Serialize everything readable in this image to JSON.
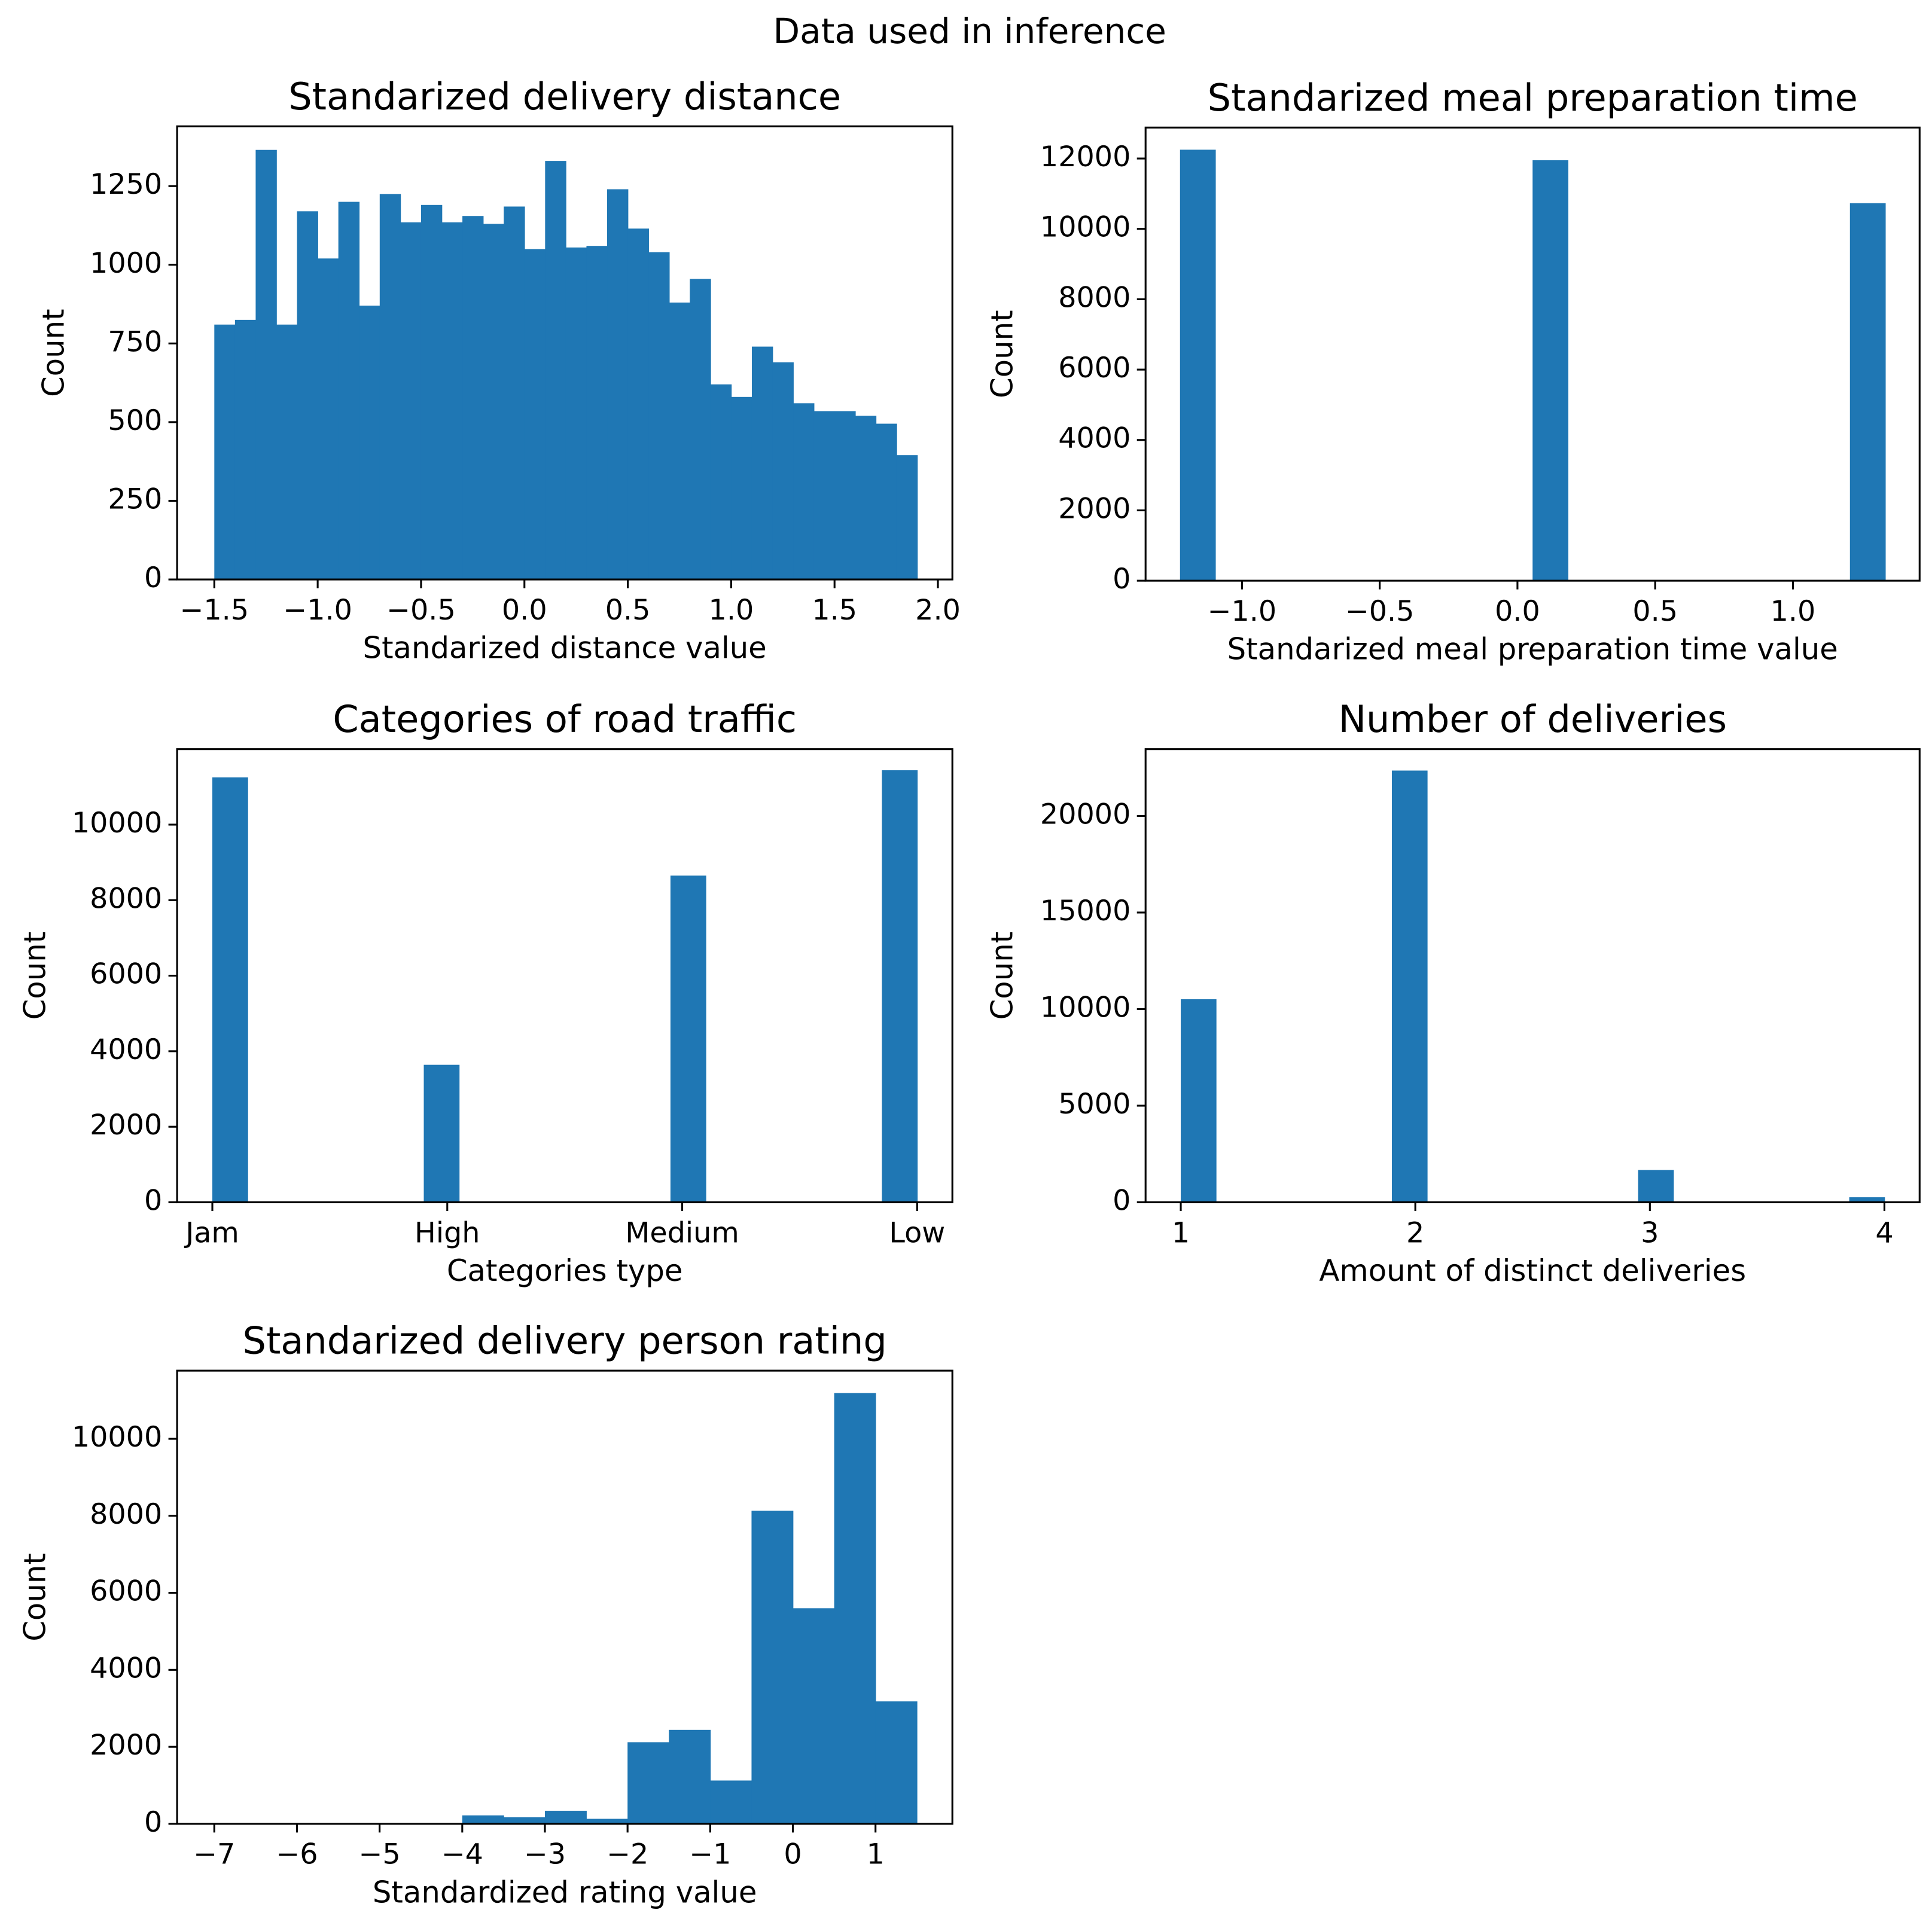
{
  "title": "Data used in inference",
  "chart_data": [
    {
      "type": "histogram",
      "title": "Standarized delivery distance",
      "xlabel": "Standarized distance value",
      "ylabel": "Count",
      "color": "#1f77b4",
      "bins": [
        -1.5,
        -1.4,
        -1.3,
        -1.2,
        -1.1,
        -1.0,
        -0.9,
        -0.8,
        -0.7,
        -0.6,
        -0.5,
        -0.4,
        -0.3,
        -0.2,
        -0.1,
        0.0,
        0.1,
        0.2,
        0.3,
        0.4,
        0.5,
        0.6,
        0.7,
        0.8,
        0.9,
        1.0,
        1.1,
        1.2,
        1.3,
        1.4,
        1.5,
        1.6,
        1.7,
        1.8,
        1.9
      ],
      "counts": [
        810,
        825,
        1365,
        810,
        1170,
        1020,
        1200,
        870,
        1225,
        1135,
        1190,
        1135,
        1155,
        1130,
        1185,
        1050,
        1330,
        1055,
        1060,
        1240,
        1115,
        1040,
        880,
        955,
        620,
        580,
        740,
        690,
        560,
        535,
        535,
        520,
        495,
        395
      ],
      "xlim": [
        -1.68,
        2.07
      ],
      "ylim": [
        0,
        1440
      ],
      "xticks": [
        {
          "value": -1.5,
          "label": "−1.5"
        },
        {
          "value": -1.0,
          "label": "−1.0"
        },
        {
          "value": -0.5,
          "label": "−0.5"
        },
        {
          "value": 0,
          "label": "0.0"
        },
        {
          "value": 0.5,
          "label": "0.5"
        },
        {
          "value": 1,
          "label": "1.0"
        },
        {
          "value": 1.5,
          "label": "1.5"
        },
        {
          "value": 2,
          "label": "2.0"
        }
      ],
      "yticks": [
        0,
        250,
        500,
        750,
        1000,
        1250
      ]
    },
    {
      "type": "histogram",
      "title": "Standarized meal preparation time",
      "xlabel": "Standarized meal preparation time value",
      "ylabel": "Count",
      "color": "#1f77b4",
      "bins": [
        -1.225,
        -1.097,
        -0.969,
        -0.841,
        -0.713,
        -0.585,
        -0.457,
        -0.329,
        -0.201,
        -0.073,
        0.055,
        0.183,
        0.311,
        0.439,
        0.567,
        0.695,
        0.823,
        0.951,
        1.079,
        1.207,
        1.335
      ],
      "counts": [
        12250,
        0,
        0,
        0,
        0,
        0,
        0,
        0,
        0,
        0,
        11950,
        0,
        0,
        0,
        0,
        0,
        0,
        0,
        0,
        10730
      ],
      "xlim": [
        -1.35,
        1.46
      ],
      "ylim": [
        0,
        12880
      ],
      "xticks": [
        {
          "value": -1.0,
          "label": "−1.0"
        },
        {
          "value": -0.5,
          "label": "−0.5"
        },
        {
          "value": 0,
          "label": "0.0"
        },
        {
          "value": 0.5,
          "label": "0.5"
        },
        {
          "value": 1,
          "label": "1.0"
        }
      ],
      "yticks": [
        0,
        2000,
        4000,
        6000,
        8000,
        10000,
        12000
      ]
    },
    {
      "type": "histogram",
      "title": "Categories of road traffic",
      "xlabel": "Categories type",
      "ylabel": "Count",
      "color": "#1f77b4",
      "bins": [
        0,
        0.15,
        0.3,
        0.45,
        0.6,
        0.75,
        0.9,
        1.05,
        1.2,
        1.35,
        1.5,
        1.65,
        1.8,
        1.95,
        2.1,
        2.25,
        2.4,
        2.55,
        2.7,
        2.85,
        3.0
      ],
      "counts": [
        11250,
        0,
        0,
        0,
        0,
        0,
        3640,
        0,
        0,
        0,
        0,
        0,
        0,
        8650,
        0,
        0,
        0,
        0,
        0,
        11440
      ],
      "xlim": [
        -0.15,
        3.15
      ],
      "ylim": [
        0,
        12000
      ],
      "xticks": [
        {
          "value": 0,
          "label": "Jam"
        },
        {
          "value": 1,
          "label": "High"
        },
        {
          "value": 2,
          "label": "Medium"
        },
        {
          "value": 3,
          "label": "Low"
        }
      ],
      "yticks": [
        0,
        2000,
        4000,
        6000,
        8000,
        10000
      ]
    },
    {
      "type": "histogram",
      "title": "Number of deliveries",
      "xlabel": "Amount of distinct deliveries",
      "ylabel": "Count",
      "color": "#1f77b4",
      "bins": [
        1,
        1.15,
        1.3,
        1.45,
        1.6,
        1.75,
        1.9,
        2.05,
        2.2,
        2.35,
        2.5,
        2.65,
        2.8,
        2.95,
        3.1,
        3.25,
        3.4,
        3.55,
        3.7,
        3.85,
        4
      ],
      "counts": [
        10510,
        0,
        0,
        0,
        0,
        0,
        22350,
        0,
        0,
        0,
        0,
        0,
        0,
        1670,
        0,
        0,
        0,
        0,
        0,
        260
      ],
      "xlim": [
        0.85,
        4.15
      ],
      "ylim": [
        0,
        23460
      ],
      "xticks": [
        1,
        2,
        3,
        4
      ],
      "yticks": [
        0,
        5000,
        10000,
        15000,
        20000
      ]
    },
    {
      "type": "histogram",
      "title": "Standarized delivery person rating",
      "xlabel": "Standardized rating value",
      "ylabel": "Count",
      "color": "#1f77b4",
      "bins": [
        -7,
        -6.5,
        -6,
        -5.5,
        -5,
        -4.5,
        -4,
        -3.5,
        -3,
        -2.5,
        -2,
        -1.5,
        -1,
        -0.5,
        0,
        0.5,
        1,
        1.5
      ],
      "counts": [
        5,
        0,
        0,
        5,
        10,
        20,
        220,
        170,
        340,
        130,
        2120,
        2440,
        1125,
        8130,
        5600,
        11190,
        3180
      ],
      "xlim": [
        -7.45,
        1.93
      ],
      "ylim": [
        0,
        11770
      ],
      "xticks": [
        {
          "value": -7,
          "label": "−7"
        },
        {
          "value": -6,
          "label": "−6"
        },
        {
          "value": -5,
          "label": "−5"
        },
        {
          "value": -4,
          "label": "−4"
        },
        {
          "value": -3,
          "label": "−3"
        },
        {
          "value": -2,
          "label": "−2"
        },
        {
          "value": -1,
          "label": "−1"
        },
        0,
        1
      ],
      "yticks": [
        0,
        2000,
        4000,
        6000,
        8000,
        10000
      ]
    }
  ]
}
